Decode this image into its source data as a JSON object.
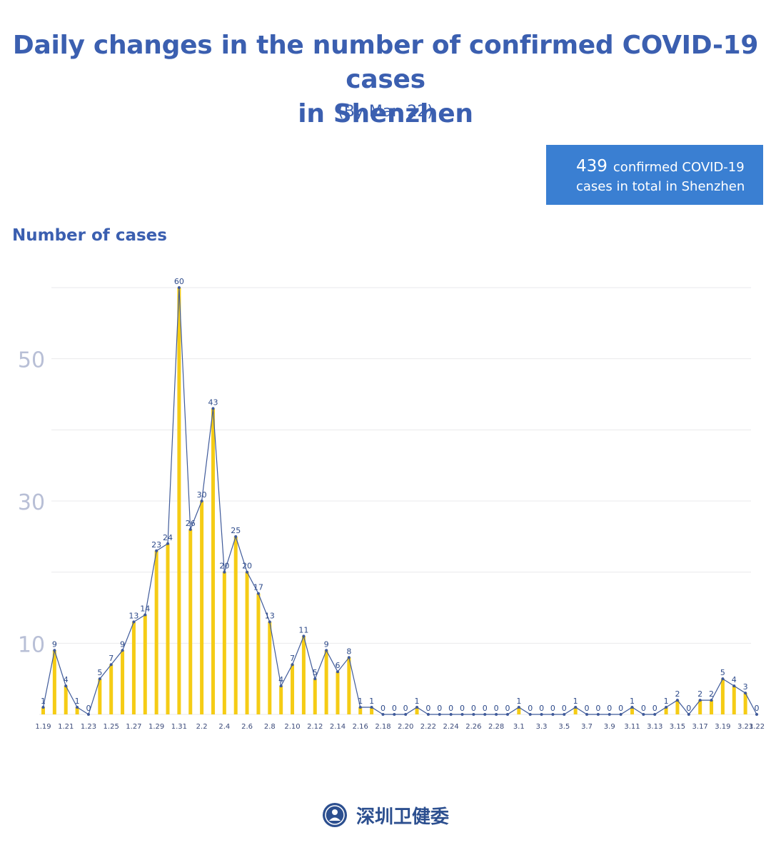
{
  "header": {
    "title_line1": "Daily changes in the number of confirmed COVID-19 cases",
    "title_line2": "in Shenzhen",
    "subtitle": "(By Mar. 22)"
  },
  "summary": {
    "total": "439",
    "text_line1": "confirmed COVID-19",
    "text_line2": "cases in total in Shenzhen"
  },
  "footer": {
    "org_name": "深圳卫健委",
    "logo_icon": "health-commission-seal-icon"
  },
  "colors": {
    "title": "#3b5fb0",
    "bar": "#f5cc15",
    "line": "#3f5a9a",
    "box": "#3a7fd2",
    "tick": "#b8bfd6"
  },
  "chart_data": {
    "type": "bar",
    "ylabel": "Number of cases",
    "yticks": [
      10,
      30,
      50
    ],
    "ylim": [
      0,
      60
    ],
    "grid": true,
    "overlay": "line",
    "categories": [
      "1.19",
      "1.20",
      "1.21",
      "1.22",
      "1.23",
      "1.24",
      "1.25",
      "1.26",
      "1.27",
      "1.28",
      "1.29",
      "1.30",
      "1.31",
      "2.1",
      "2.2",
      "2.3",
      "2.4",
      "2.5",
      "2.6",
      "2.7",
      "2.8",
      "2.9",
      "2.10",
      "2.11",
      "2.12",
      "2.13",
      "2.14",
      "2.15",
      "2.16",
      "2.17",
      "2.18",
      "2.19",
      "2.20",
      "2.21",
      "2.22",
      "2.23",
      "2.24",
      "2.25",
      "2.26",
      "2.27",
      "2.28",
      "2.29",
      "3.1",
      "3.2",
      "3.3",
      "3.4",
      "3.5",
      "3.6",
      "3.7",
      "3.8",
      "3.9",
      "3.10",
      "3.11",
      "3.12",
      "3.13",
      "3.14",
      "3.15",
      "3.16",
      "3.17",
      "3.18",
      "3.19",
      "3.20",
      "3.21",
      "3.22"
    ],
    "xtick_labels": [
      "1.19",
      "1.21",
      "1.23",
      "1.25",
      "1.27",
      "1.29",
      "1.31",
      "2.2",
      "2.4",
      "2.6",
      "2.8",
      "2.10",
      "2.12",
      "2.14",
      "2.16",
      "2.18",
      "2.20",
      "2.22",
      "2.24",
      "2.26",
      "2.28",
      "3.1",
      "3.3",
      "3.5",
      "3.7",
      "3.9",
      "3.11",
      "3.13",
      "3.15",
      "3.17",
      "3.19",
      "3.21",
      "3.22"
    ],
    "values": [
      1,
      9,
      4,
      1,
      0,
      5,
      7,
      9,
      13,
      14,
      23,
      24,
      60,
      26,
      30,
      43,
      20,
      25,
      20,
      17,
      13,
      4,
      7,
      11,
      5,
      9,
      6,
      8,
      1,
      1,
      0,
      0,
      0,
      1,
      0,
      0,
      0,
      0,
      0,
      0,
      0,
      0,
      1,
      0,
      0,
      0,
      0,
      1,
      0,
      0,
      0,
      0,
      1,
      0,
      0,
      1,
      2,
      0,
      2,
      2,
      5,
      4,
      3,
      0
    ]
  }
}
